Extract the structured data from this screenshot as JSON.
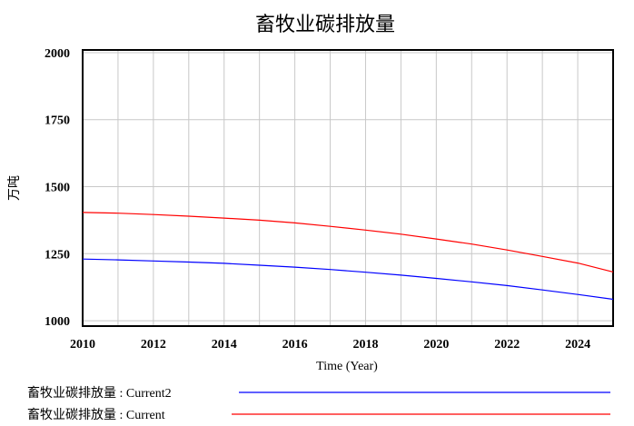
{
  "chart_data": {
    "type": "line",
    "title": "畜牧业碳排放量",
    "xlabel": "Time (Year)",
    "ylabel": "万吨",
    "xlim": [
      2010,
      2025
    ],
    "ylim": [
      980,
      2010
    ],
    "x_ticks": [
      2010,
      2012,
      2014,
      2016,
      2018,
      2020,
      2022,
      2024
    ],
    "y_ticks": [
      1000,
      1250,
      1500,
      1750,
      2000
    ],
    "x_gridlines": [
      2010,
      2011,
      2012,
      2013,
      2014,
      2015,
      2016,
      2017,
      2018,
      2019,
      2020,
      2021,
      2022,
      2023,
      2024,
      2025
    ],
    "y_gridlines": [
      1000,
      1250,
      1500,
      1750,
      2000
    ],
    "grid": true,
    "legend_position": "bottom",
    "x": [
      2010,
      2011,
      2012,
      2013,
      2014,
      2015,
      2016,
      2017,
      2018,
      2019,
      2020,
      2021,
      2022,
      2023,
      2024,
      2025
    ],
    "series": [
      {
        "name": "畜牧业碳排放量 : Current2",
        "color": "#0000ff",
        "values": [
          1230,
          1227,
          1223,
          1219,
          1214,
          1207,
          1200,
          1191,
          1181,
          1170,
          1158,
          1145,
          1131,
          1115,
          1098,
          1080
        ]
      },
      {
        "name": "畜牧业碳排放量 : Current",
        "color": "#ff0000",
        "values": [
          1404,
          1401,
          1396,
          1390,
          1383,
          1375,
          1365,
          1352,
          1338,
          1323,
          1305,
          1286,
          1264,
          1240,
          1215,
          1182
        ]
      }
    ]
  }
}
